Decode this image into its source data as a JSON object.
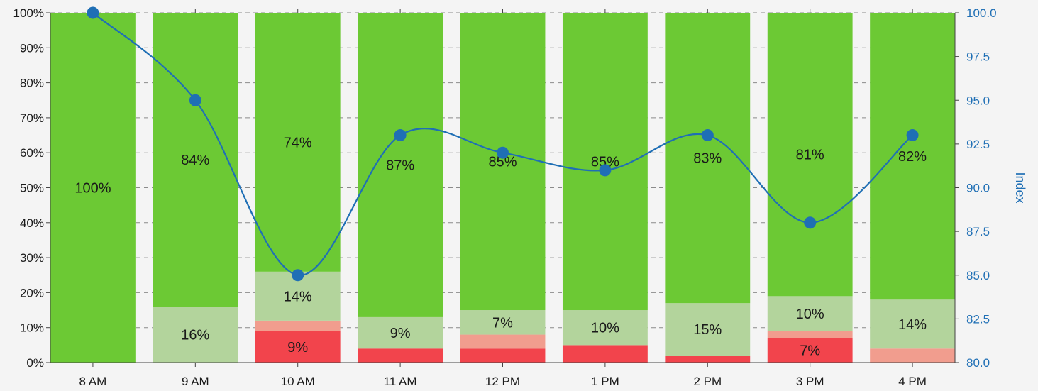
{
  "chart_data": {
    "type": "bar",
    "stacked": true,
    "percent_stacked": true,
    "categories": [
      "8 AM",
      "9 AM",
      "10 AM",
      "11 AM",
      "12 PM",
      "1 PM",
      "2 PM",
      "3 PM",
      "4 PM"
    ],
    "series": [
      {
        "color": "#f2444c",
        "values": [
          0,
          0,
          9,
          4,
          4,
          5,
          2,
          7,
          0
        ],
        "labels": [
          "",
          "",
          "9%",
          "",
          "",
          "",
          "",
          "7%",
          ""
        ]
      },
      {
        "color": "#f19d8e",
        "values": [
          0,
          0,
          3,
          0,
          4,
          0,
          0,
          2,
          4
        ],
        "labels": [
          "",
          "",
          "",
          "",
          "",
          "",
          "",
          "",
          ""
        ]
      },
      {
        "color": "#b3d49c",
        "values": [
          0,
          16,
          14,
          9,
          7,
          10,
          15,
          10,
          14
        ],
        "labels": [
          "",
          "16%",
          "14%",
          "9%",
          "7%",
          "10%",
          "15%",
          "10%",
          "14%"
        ]
      },
      {
        "color": "#6cc934",
        "values": [
          100,
          84,
          74,
          87,
          85,
          85,
          83,
          81,
          82
        ],
        "labels": [
          "100%",
          "84%",
          "74%",
          "87%",
          "85%",
          "85%",
          "83%",
          "81%",
          "82%"
        ]
      }
    ],
    "line_series": {
      "axis": "right",
      "color": "#1f6fb5",
      "values": [
        100,
        95,
        85,
        93,
        92,
        91,
        93,
        88,
        93
      ]
    },
    "y_left": {
      "lim": [
        0,
        100
      ],
      "ticks": [
        "0%",
        "10%",
        "20%",
        "30%",
        "40%",
        "50%",
        "60%",
        "70%",
        "80%",
        "90%",
        "100%"
      ]
    },
    "y_right": {
      "label": "Index",
      "lim": [
        80,
        100
      ],
      "ticks": [
        "80.0",
        "82.5",
        "85.0",
        "87.5",
        "90.0",
        "92.5",
        "95.0",
        "97.5",
        "100.0"
      ],
      "color": "#1f6fb5"
    },
    "grid": {
      "horizontal": true,
      "style": "dashed"
    }
  }
}
